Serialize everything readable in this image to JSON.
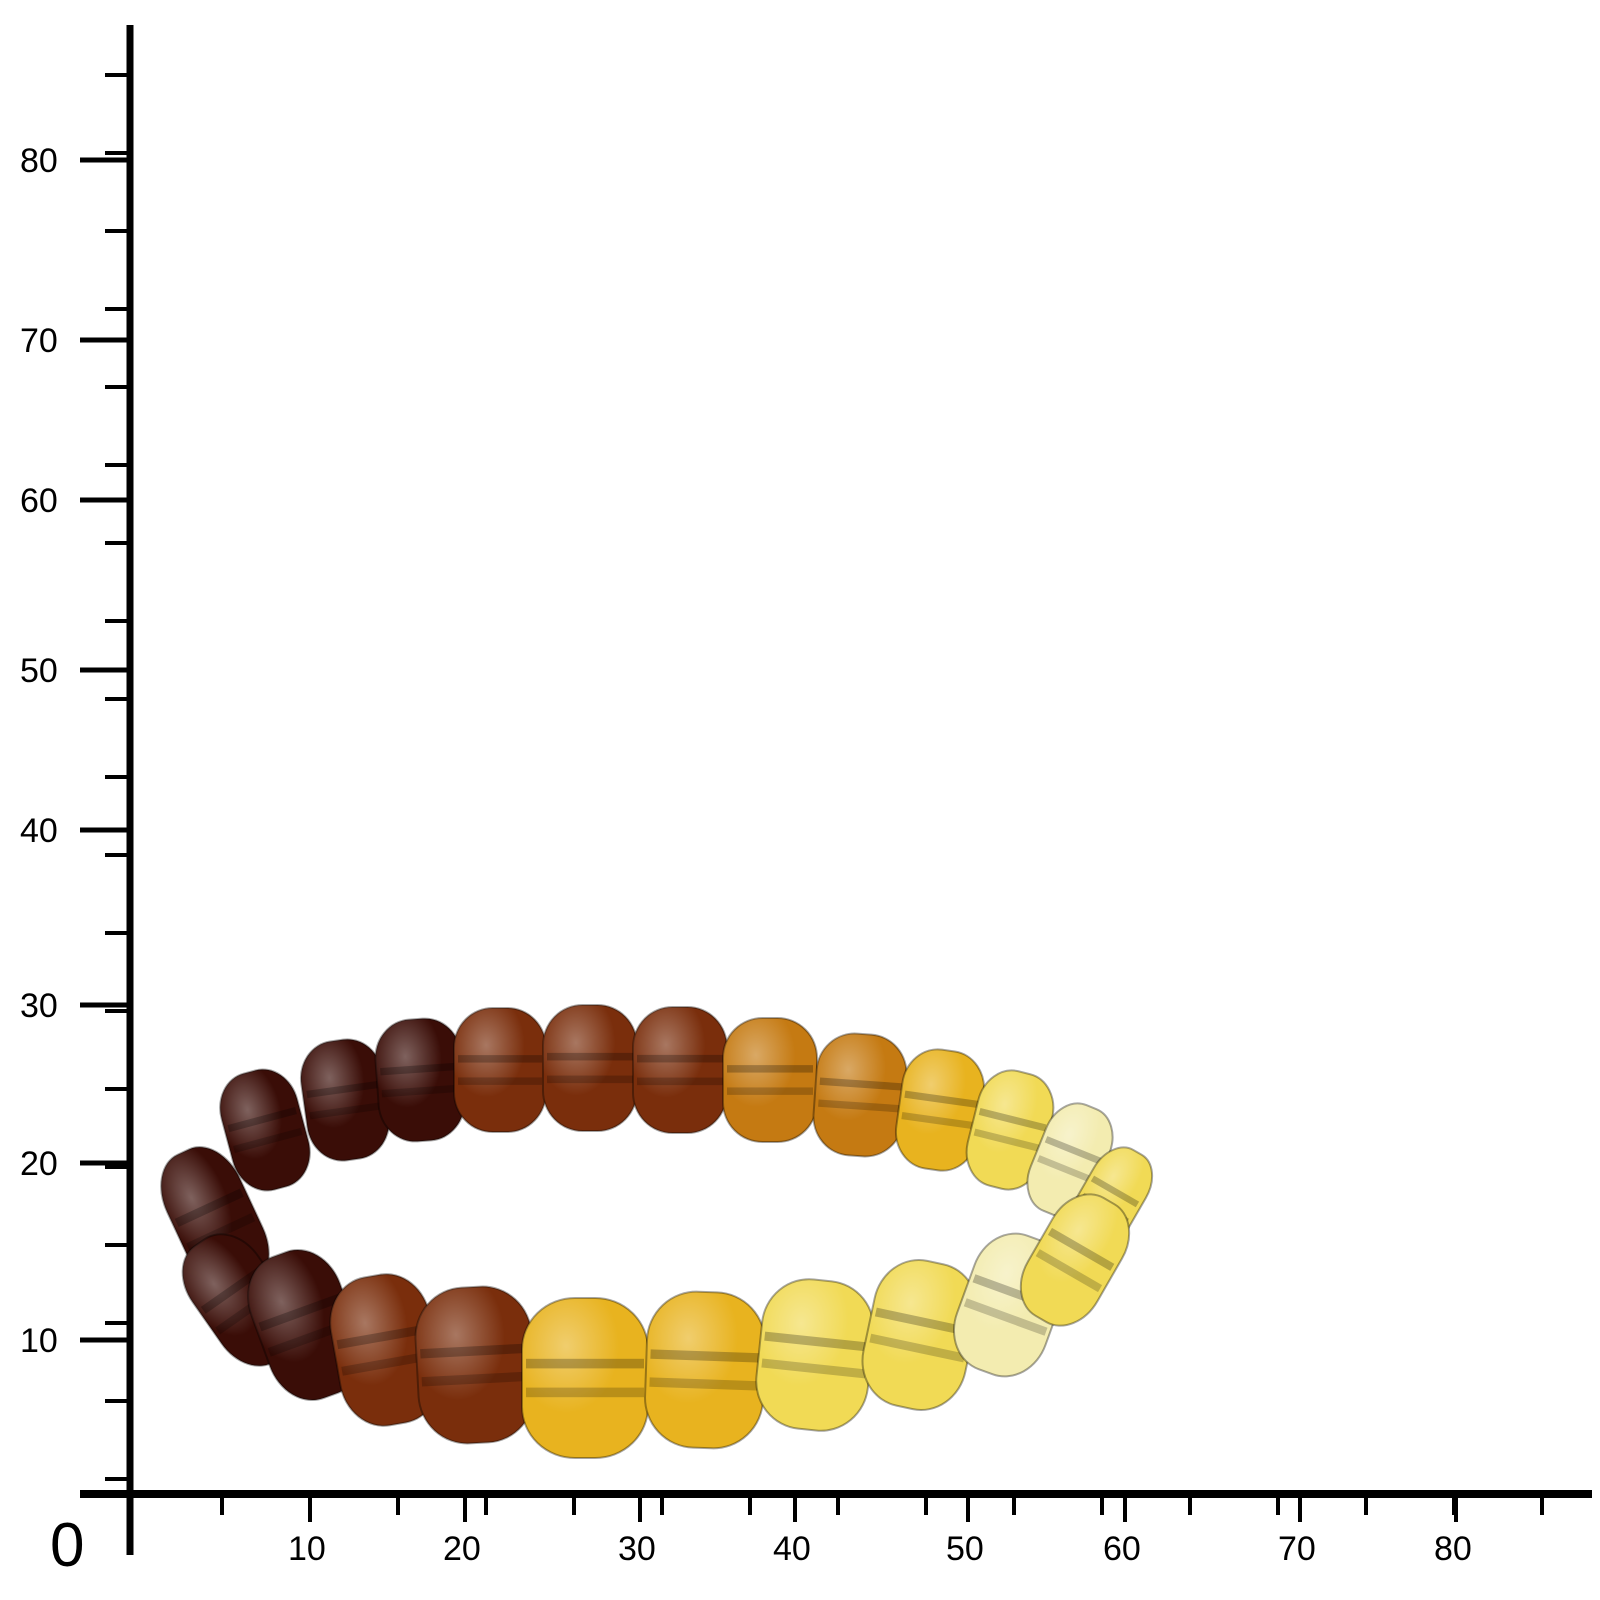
{
  "ruler": {
    "origin_label": "0",
    "x_ticks": [
      "10",
      "20",
      "30",
      "40",
      "50",
      "60",
      "70",
      "80"
    ],
    "y_ticks": [
      "10",
      "20",
      "30",
      "40",
      "50",
      "60",
      "70",
      "80"
    ],
    "line_color": "#000000"
  },
  "bracelet": {
    "subject": "amber bead bracelet",
    "colors": {
      "cherry": "#3a0d07",
      "cognac": "#7a2e0c",
      "honey": "#c57a12",
      "golden": "#e8b31f",
      "lemon": "#f1da55",
      "pale": "#f3ecb0"
    }
  }
}
